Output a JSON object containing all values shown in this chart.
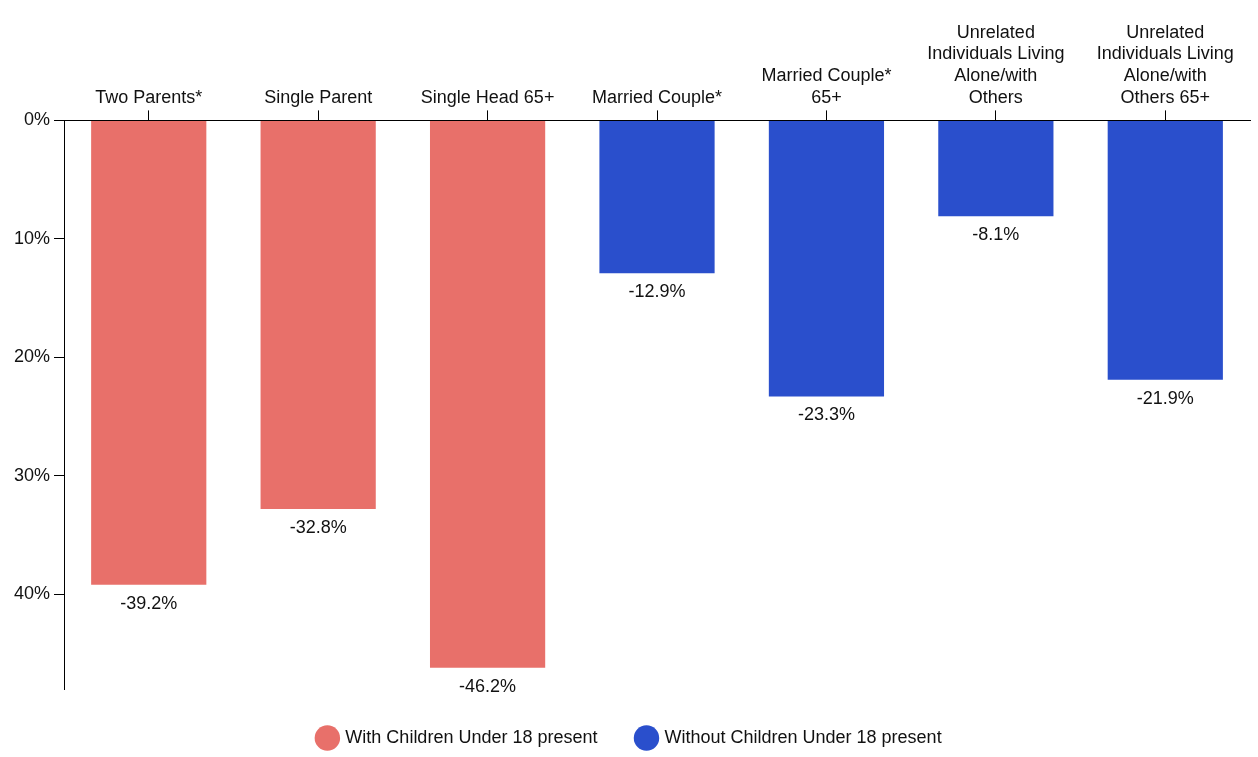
{
  "chart_data": {
    "type": "bar",
    "categories": [
      "Two Parents*",
      "Single Parent",
      "Single Head 65+",
      "Married Couple*",
      "Married Couple* 65+",
      "Unrelated Individuals Living Alone/with Others",
      "Unrelated Individuals Living Alone/with Others 65+"
    ],
    "series": [
      {
        "name": "With Children Under 18 present",
        "color": "#e8706a",
        "values": [
          -39.2,
          -32.8,
          -46.2,
          null,
          null,
          null,
          null
        ],
        "value_labels": [
          "-39.2%",
          "-32.8%",
          "-46.2%",
          null,
          null,
          null,
          null
        ]
      },
      {
        "name": "Without Children Under 18 present",
        "color": "#2a4fcc",
        "values": [
          null,
          null,
          null,
          -12.9,
          -23.3,
          -8.1,
          -21.9
        ],
        "value_labels": [
          null,
          null,
          null,
          "-12.9%",
          "-23.3%",
          "-8.1%",
          "-21.9%"
        ]
      }
    ],
    "ylim": [
      -48,
      0
    ],
    "yticks": [
      {
        "value": 0,
        "label": "0%"
      },
      {
        "value": -10,
        "label": "10%"
      },
      {
        "value": -20,
        "label": "20%"
      },
      {
        "value": -30,
        "label": "30%"
      },
      {
        "value": -40,
        "label": "40%"
      }
    ],
    "grid": false,
    "legend": "bottom"
  }
}
